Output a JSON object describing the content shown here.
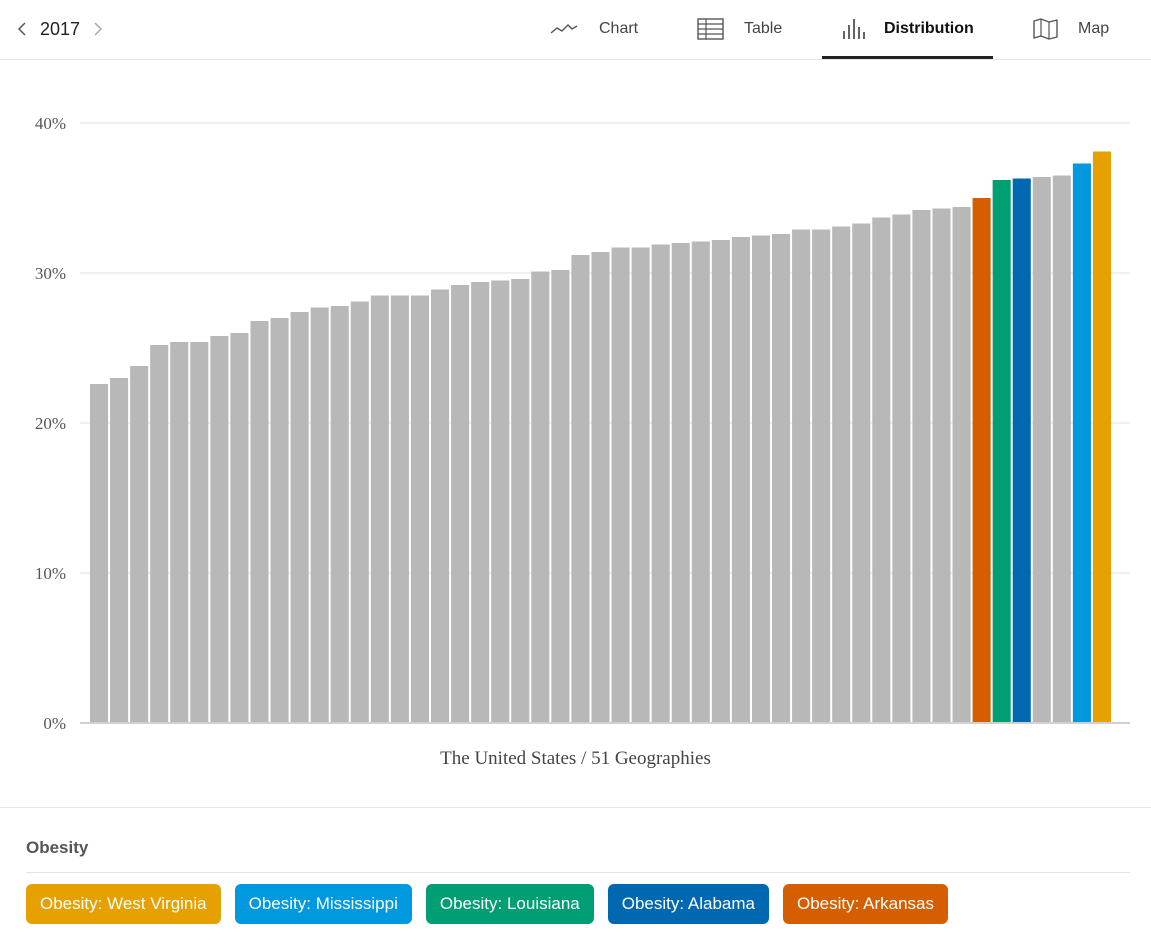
{
  "header": {
    "year": "2017",
    "tabs": [
      {
        "label": "Chart",
        "icon": "line-chart-icon",
        "active": false
      },
      {
        "label": "Table",
        "icon": "table-icon",
        "active": false
      },
      {
        "label": "Distribution",
        "icon": "distribution-icon",
        "active": true
      },
      {
        "label": "Map",
        "icon": "map-icon",
        "active": false
      }
    ]
  },
  "chart_data": {
    "type": "bar",
    "xlabel": "The United States / 51 Geographies",
    "ylabel": "",
    "ylim": [
      0,
      40
    ],
    "yticks": [
      "0%",
      "10%",
      "20%",
      "30%",
      "40%"
    ],
    "grid": true,
    "values": [
      22.6,
      23.0,
      23.8,
      25.2,
      25.4,
      25.4,
      25.8,
      26.0,
      26.8,
      27.0,
      27.4,
      27.7,
      27.8,
      28.1,
      28.5,
      28.5,
      28.5,
      28.9,
      29.2,
      29.4,
      29.5,
      29.6,
      30.1,
      30.2,
      31.2,
      31.4,
      31.7,
      31.7,
      31.9,
      32.0,
      32.1,
      32.2,
      32.4,
      32.5,
      32.6,
      32.9,
      32.9,
      33.1,
      33.3,
      33.7,
      33.9,
      34.2,
      34.3,
      34.4,
      35.0,
      36.2,
      36.3,
      36.4,
      36.5,
      37.3,
      38.1
    ],
    "highlights": [
      {
        "index": 44,
        "label": "Obesity: Arkansas",
        "color": "#D55E00"
      },
      {
        "index": 45,
        "label": "Obesity: Louisiana",
        "color": "#009E73"
      },
      {
        "index": 46,
        "label": "Obesity: Alabama",
        "color": "#0068B0"
      },
      {
        "index": 49,
        "label": "Obesity: Mississippi",
        "color": "#0098DE"
      },
      {
        "index": 50,
        "label": "Obesity: West Virginia",
        "color": "#E6A000"
      }
    ],
    "default_color": "#B8B8B8"
  },
  "legend": {
    "title": "Obesity",
    "items": [
      {
        "label": "Obesity: West Virginia",
        "color": "#E6A000"
      },
      {
        "label": "Obesity: Mississippi",
        "color": "#0098DE"
      },
      {
        "label": "Obesity: Louisiana",
        "color": "#009E73"
      },
      {
        "label": "Obesity: Alabama",
        "color": "#0068B0"
      },
      {
        "label": "Obesity: Arkansas",
        "color": "#D55E00"
      }
    ]
  }
}
